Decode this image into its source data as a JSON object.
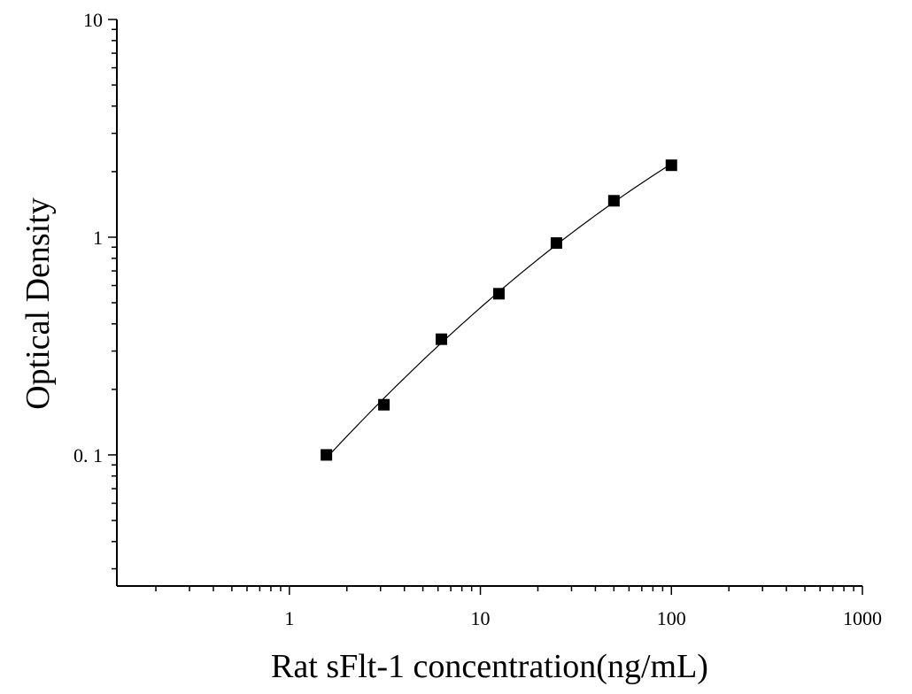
{
  "chart_data": {
    "type": "scatter",
    "xlabel": "Rat sFlt-1 concentration(ng/mL)",
    "ylabel": "Optical Density",
    "x_scale": "log",
    "y_scale": "log",
    "xlim": [
      0.125,
      1000
    ],
    "ylim": [
      0.025,
      10
    ],
    "x_ticks": [
      1,
      10,
      100,
      1000
    ],
    "x_tick_labels": [
      "1",
      "10",
      "100",
      "1000"
    ],
    "y_ticks": [
      0.1,
      1,
      10
    ],
    "y_tick_labels": [
      "0. 1",
      "1",
      "10"
    ],
    "grid": false,
    "series": [
      {
        "x": [
          1.5625,
          3.125,
          6.25,
          12.5,
          25,
          50,
          100
        ],
        "y": [
          0.1,
          0.17,
          0.34,
          0.55,
          0.94,
          1.47,
          2.14
        ],
        "marker": "square",
        "color": "#000000",
        "fit_curve": true
      }
    ]
  }
}
